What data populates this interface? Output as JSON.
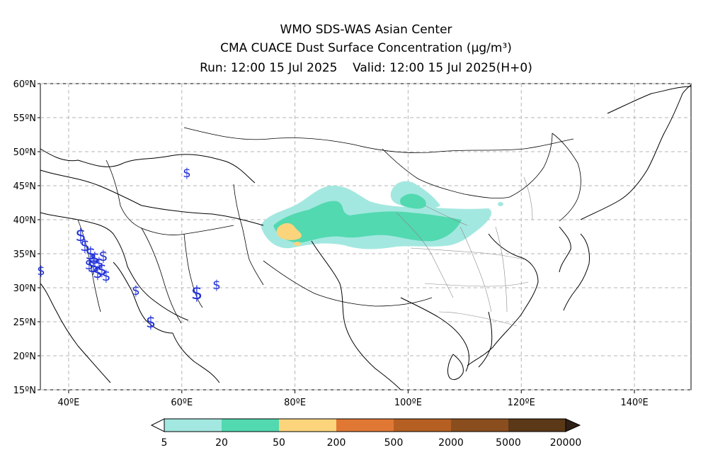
{
  "header": {
    "line1": "WMO SDS-WAS Asian Center",
    "line2": "CMA CUACE Dust Surface Concentration (μg/m³)",
    "line3": "Run: 12:00 15 Jul 2025    Valid: 12:00 15 Jul 2025(H+0)"
  },
  "map": {
    "lon_range": [
      35,
      150
    ],
    "lat_range": [
      15,
      60
    ],
    "lon_ticks": [
      {
        "value": 40,
        "label": "40ºE"
      },
      {
        "value": 60,
        "label": "60ºE"
      },
      {
        "value": 80,
        "label": "80ºE"
      },
      {
        "value": 100,
        "label": "100ºE"
      },
      {
        "value": 120,
        "label": "120ºE"
      },
      {
        "value": 140,
        "label": "140ºE"
      }
    ],
    "lat_ticks": [
      {
        "value": 60,
        "label": "60ºN"
      },
      {
        "value": 55,
        "label": "55ºN"
      },
      {
        "value": 50,
        "label": "50ºN"
      },
      {
        "value": 45,
        "label": "45ºN"
      },
      {
        "value": 40,
        "label": "40ºN"
      },
      {
        "value": 35,
        "label": "35ºN"
      },
      {
        "value": 30,
        "label": "30ºN"
      },
      {
        "value": 25,
        "label": "25ºN"
      },
      {
        "value": 20,
        "label": "20ºN"
      },
      {
        "value": 15,
        "label": "15ºN"
      }
    ],
    "grid": true,
    "station_symbol": "$",
    "station_color": "#1f2fd8"
  },
  "colorbar": {
    "labels": [
      "5",
      "20",
      "50",
      "200",
      "500",
      "2000",
      "5000",
      "20000"
    ],
    "colors": [
      "#a3e8e0",
      "#52d9b0",
      "#fbd47c",
      "#e07834",
      "#b55f23",
      "#8a4e1e",
      "#5a3818",
      "#2e2014"
    ]
  }
}
